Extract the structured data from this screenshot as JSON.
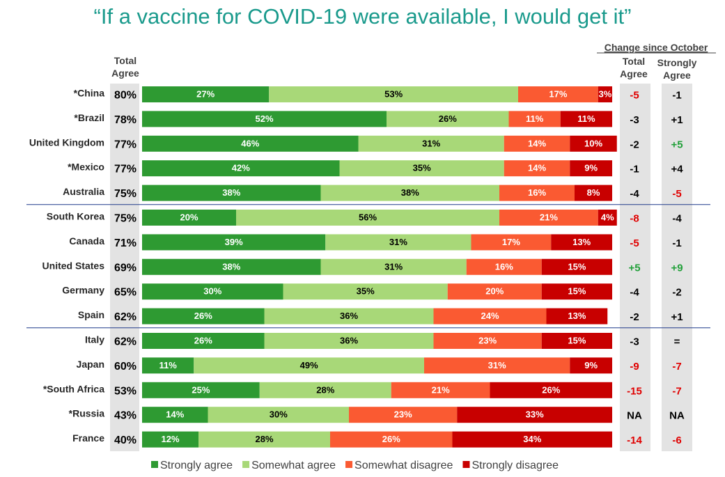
{
  "title": "“If a vaccine for COVID-19 were available, I would get it”",
  "colors": {
    "strongly_agree": "#2e9a32",
    "somewhat_agree": "#a8d878",
    "somewhat_disagree": "#fa5a32",
    "strongly_disagree": "#c80000",
    "positive_change": "#22a03a",
    "negative_change": "#e00000",
    "neutral_change": "#000000",
    "column_bg": "#e3e3e3",
    "separator": "#1f3a8a"
  },
  "headers": {
    "total_agree": [
      "Total",
      "Agree"
    ],
    "change_title": "Change since October",
    "change_total": [
      "Total",
      "Agree"
    ],
    "change_strong": [
      "Strongly",
      "Agree"
    ]
  },
  "chart_data": {
    "type": "bar",
    "orientation": "horizontal",
    "stacked": true,
    "percent_scale": true,
    "categories": [
      "*China",
      "*Brazil",
      "United Kingdom",
      "*Mexico",
      "Australia",
      "South Korea",
      "Canada",
      "United States",
      "Germany",
      "Spain",
      "Italy",
      "Japan",
      "*South Africa",
      "*Russia",
      "France"
    ],
    "total_agree": [
      "80%",
      "78%",
      "77%",
      "77%",
      "75%",
      "75%",
      "71%",
      "69%",
      "65%",
      "62%",
      "62%",
      "60%",
      "53%",
      "43%",
      "40%"
    ],
    "series": [
      {
        "name": "Strongly agree",
        "key": "strongly_agree",
        "values": [
          27,
          52,
          46,
          42,
          38,
          20,
          39,
          38,
          30,
          26,
          26,
          11,
          25,
          14,
          12
        ]
      },
      {
        "name": "Somewhat agree",
        "key": "somewhat_agree",
        "values": [
          53,
          26,
          31,
          35,
          38,
          56,
          31,
          31,
          35,
          36,
          36,
          49,
          28,
          30,
          28
        ]
      },
      {
        "name": "Somewhat disagree",
        "key": "somewhat_disagree",
        "values": [
          17,
          11,
          14,
          14,
          16,
          21,
          17,
          16,
          20,
          24,
          23,
          31,
          21,
          23,
          26
        ]
      },
      {
        "name": "Strongly disagree",
        "key": "strongly_disagree",
        "values": [
          3,
          11,
          10,
          9,
          8,
          4,
          13,
          15,
          15,
          13,
          15,
          9,
          26,
          33,
          34
        ]
      }
    ],
    "change_total_agree": [
      "-5",
      "-3",
      "-2",
      "-1",
      "-4",
      "-8",
      "-5",
      "+5",
      "-4",
      "-2",
      "-3",
      "-9",
      "-15",
      "NA",
      "-14"
    ],
    "change_strongly_agree": [
      "-1",
      "+1",
      "+5",
      "+4",
      "-5",
      "-4",
      "-1",
      "+9",
      "-2",
      "+1",
      "=",
      "-7",
      "-7",
      "NA",
      "-6"
    ],
    "change_colors_total": [
      "negative",
      "neutral",
      "neutral",
      "neutral",
      "neutral",
      "negative",
      "negative",
      "positive",
      "neutral",
      "neutral",
      "neutral",
      "negative",
      "negative",
      "neutral",
      "negative"
    ],
    "change_colors_strong": [
      "neutral",
      "neutral",
      "positive",
      "neutral",
      "negative",
      "neutral",
      "neutral",
      "positive",
      "neutral",
      "neutral",
      "neutral",
      "negative",
      "negative",
      "neutral",
      "negative"
    ],
    "group_breaks_after": [
      4,
      9
    ],
    "legend_position": "bottom"
  }
}
